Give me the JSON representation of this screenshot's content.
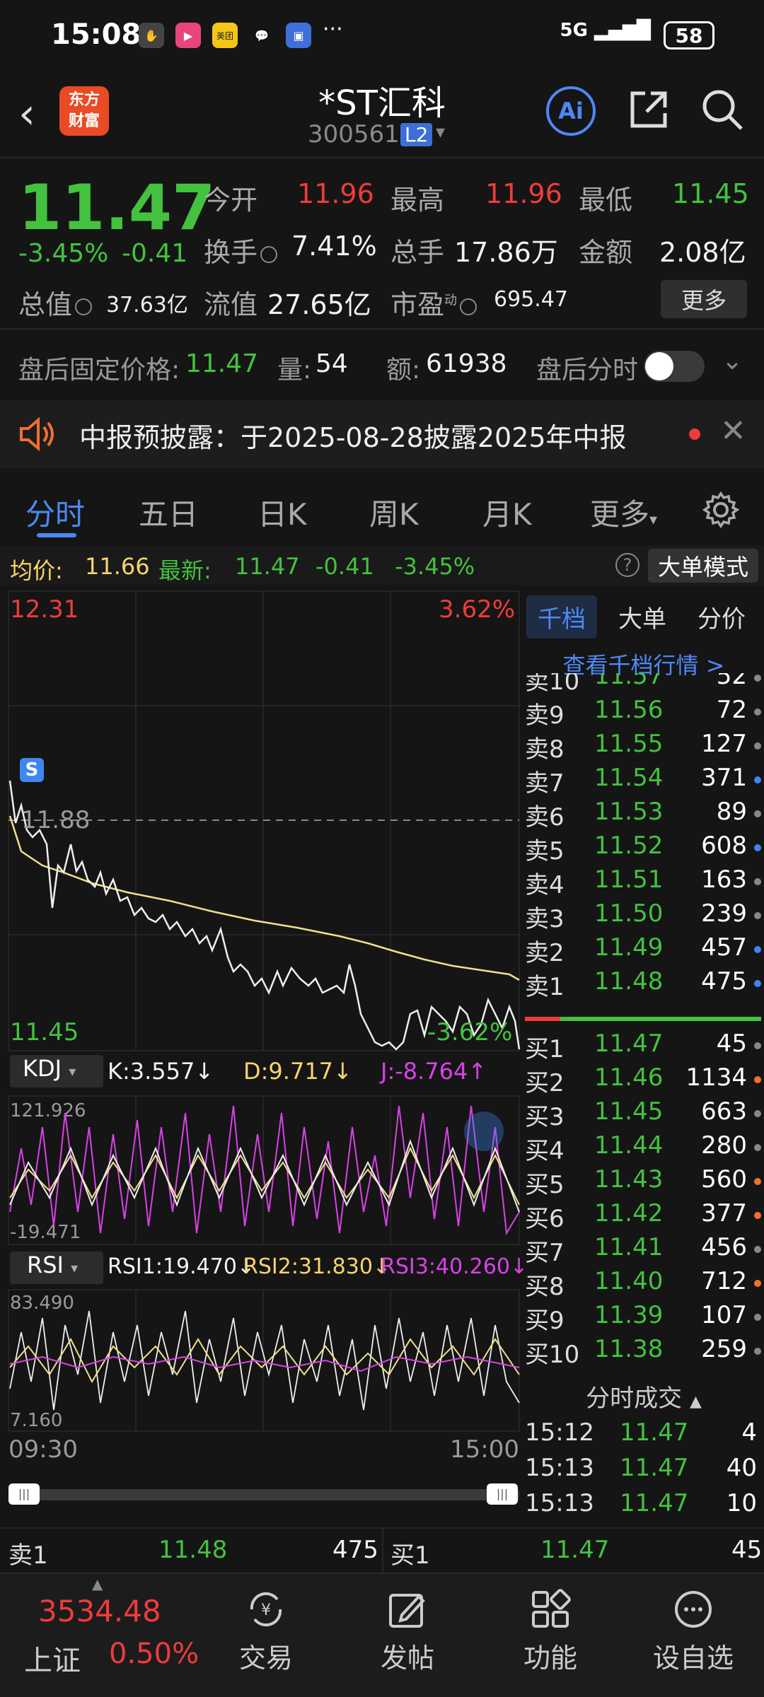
{
  "status": {
    "time": "15:08",
    "network": "5G",
    "battery": "58"
  },
  "header": {
    "title": "*ST汇科",
    "code": "300561",
    "level": "L2",
    "logo": "东方\n财富"
  },
  "quote": {
    "price": "11.47",
    "change_pct": "-3.45%",
    "change": "-0.41",
    "open_label": "今开",
    "open": "11.96",
    "high_label": "最高",
    "high": "11.96",
    "low_label": "最低",
    "low": "11.45",
    "turnover_label": "换手",
    "turnover": "7.41%",
    "volume_label": "总手",
    "volume": "17.86万",
    "amount_label": "金额",
    "amount": "2.08亿",
    "mktcap_label": "总值",
    "mktcap": "37.63亿",
    "float_label": "流值",
    "float": "27.65亿",
    "pe_label": "市盈",
    "pe_sup": "动",
    "pe": "695.47",
    "more": "更多"
  },
  "afterhours": {
    "label": "盘后固定价格:",
    "price": "11.47",
    "vol_label": "量:",
    "vol": "54",
    "amt_label": "额:",
    "amt": "61938",
    "timeshare": "盘后分时"
  },
  "notice": {
    "text": "中报预披露：于2025-08-28披露2025年中报"
  },
  "tabs": [
    "分时",
    "五日",
    "日K",
    "周K",
    "月K",
    "更多"
  ],
  "avg": {
    "avg_label": "均价:",
    "avg": "11.66",
    "latest_label": "最新:",
    "latest": "11.47",
    "chg": "-0.41",
    "pct": "-3.45%",
    "big_order": "大单模式"
  },
  "chart": {
    "ymax": "12.31",
    "ymax_pct": "3.62%",
    "ymin": "11.45",
    "ymin_pct": "-3.62%",
    "ref": "11.88",
    "marker": "S",
    "kdj_label": "KDJ",
    "k": "K:3.557↓",
    "d": "D:9.717↓",
    "j": "J:-8.764↑",
    "kdj_max": "121.926",
    "kdj_min": "-19.471",
    "rsi_label": "RSI",
    "rsi1": "RSI1:19.470↓",
    "rsi2": "RSI2:31.830↓",
    "rsi3": "RSI3:40.260↓",
    "rsi_max": "83.490",
    "rsi_min": "7.160",
    "t_start": "09:30",
    "t_end": "15:00"
  },
  "depth": {
    "tabs": [
      "千档",
      "大单",
      "分价"
    ],
    "link": "查看千档行情 >",
    "asks": [
      {
        "label": "卖10",
        "price": "11.57",
        "vol": "52",
        "dot": "#888888"
      },
      {
        "label": "卖9",
        "price": "11.56",
        "vol": "72",
        "dot": "#888888"
      },
      {
        "label": "卖8",
        "price": "11.55",
        "vol": "127",
        "dot": "#888888"
      },
      {
        "label": "卖7",
        "price": "11.54",
        "vol": "371",
        "dot": "#3f86f0"
      },
      {
        "label": "卖6",
        "price": "11.53",
        "vol": "89",
        "dot": "#888888"
      },
      {
        "label": "卖5",
        "price": "11.52",
        "vol": "608",
        "dot": "#3f86f0"
      },
      {
        "label": "卖4",
        "price": "11.51",
        "vol": "163",
        "dot": "#888888"
      },
      {
        "label": "卖3",
        "price": "11.50",
        "vol": "239",
        "dot": "#888888"
      },
      {
        "label": "卖2",
        "price": "11.49",
        "vol": "457",
        "dot": "#3f86f0"
      },
      {
        "label": "卖1",
        "price": "11.48",
        "vol": "475",
        "dot": "#3f86f0"
      }
    ],
    "bids": [
      {
        "label": "买1",
        "price": "11.47",
        "vol": "45",
        "dot": "#888888"
      },
      {
        "label": "买2",
        "price": "11.46",
        "vol": "1134",
        "dot": "#f07030"
      },
      {
        "label": "买3",
        "price": "11.45",
        "vol": "663",
        "dot": "#888888"
      },
      {
        "label": "买4",
        "price": "11.44",
        "vol": "280",
        "dot": "#888888"
      },
      {
        "label": "买5",
        "price": "11.43",
        "vol": "560",
        "dot": "#f07030"
      },
      {
        "label": "买6",
        "price": "11.42",
        "vol": "377",
        "dot": "#f07030"
      },
      {
        "label": "买7",
        "price": "11.41",
        "vol": "456",
        "dot": "#888888"
      },
      {
        "label": "买8",
        "price": "11.40",
        "vol": "712",
        "dot": "#f07030"
      },
      {
        "label": "买9",
        "price": "11.39",
        "vol": "107",
        "dot": "#888888"
      },
      {
        "label": "买10",
        "price": "11.38",
        "vol": "259",
        "dot": "#888888"
      }
    ],
    "trades_title": "分时成交",
    "trades": [
      {
        "time": "15:12",
        "price": "11.47",
        "vol": "4"
      },
      {
        "time": "15:13",
        "price": "11.47",
        "vol": "40"
      },
      {
        "time": "15:13",
        "price": "11.47",
        "vol": "10"
      }
    ]
  },
  "bottom_quote": {
    "sell_label": "卖1",
    "sell_price": "11.48",
    "sell_vol": "475",
    "buy_label": "买1",
    "buy_price": "11.47",
    "buy_vol": "45"
  },
  "nav": {
    "index_value": "3534.48",
    "index_name": "上证",
    "index_pct": "0.50%",
    "items": [
      "交易",
      "发帖",
      "功能",
      "设自选"
    ]
  }
}
